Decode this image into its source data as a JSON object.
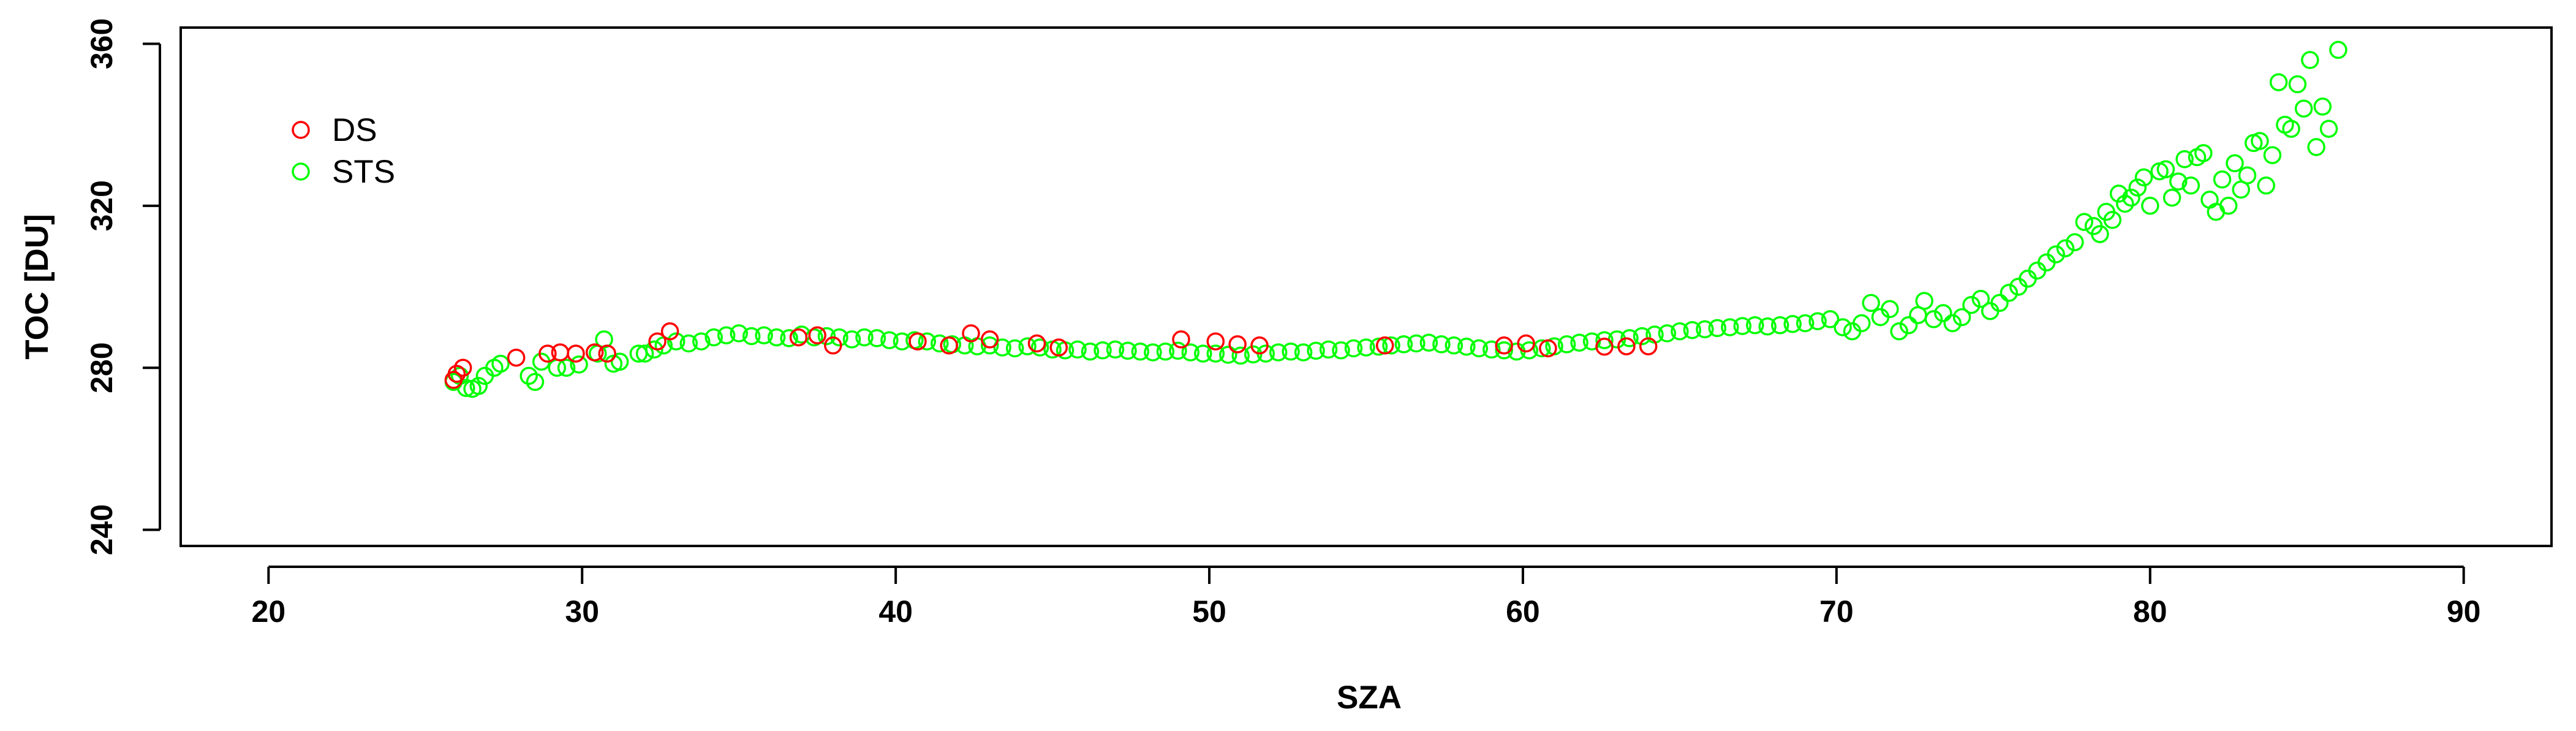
{
  "chart_data": {
    "type": "scatter",
    "xlabel": "SZA",
    "ylabel": "TOC [DU]",
    "xlim": [
      17.2,
      92.8
    ],
    "ylim": [
      236,
      364
    ],
    "x_ticks": [
      20,
      30,
      40,
      50,
      60,
      70,
      80,
      90
    ],
    "y_ticks": [
      240,
      280,
      320,
      360
    ],
    "legend_position": "top-left",
    "series": [
      {
        "name": "DS",
        "color": "#ff0000",
        "marker": "open-circle",
        "points": [
          [
            25.9,
            277
          ],
          [
            26.0,
            278.5
          ],
          [
            26.2,
            280
          ],
          [
            27.9,
            282.5
          ],
          [
            28.9,
            283.5
          ],
          [
            29.3,
            283.8
          ],
          [
            29.8,
            283.5
          ],
          [
            30.4,
            283.8
          ],
          [
            30.8,
            283.5
          ],
          [
            32.4,
            286.5
          ],
          [
            32.8,
            289
          ],
          [
            36.9,
            287.5
          ],
          [
            37.5,
            288
          ],
          [
            38.0,
            285.5
          ],
          [
            40.7,
            286.5
          ],
          [
            41.7,
            285.5
          ],
          [
            42.4,
            288.5
          ],
          [
            43.0,
            287
          ],
          [
            44.5,
            286
          ],
          [
            45.2,
            285
          ],
          [
            49.1,
            287
          ],
          [
            50.2,
            286.5
          ],
          [
            50.9,
            285.8
          ],
          [
            51.6,
            285.5
          ],
          [
            55.6,
            285.5
          ],
          [
            59.4,
            285.5
          ],
          [
            60.1,
            286
          ],
          [
            60.8,
            284.8
          ],
          [
            62.6,
            285.2
          ],
          [
            63.3,
            285.3
          ],
          [
            64.0,
            285.3
          ]
        ]
      },
      {
        "name": "STS",
        "color": "#00ff00",
        "marker": "open-circle",
        "points": [
          [
            25.9,
            276.5
          ],
          [
            26.1,
            278
          ],
          [
            26.3,
            275
          ],
          [
            26.5,
            274.8
          ],
          [
            26.7,
            275.5
          ],
          [
            26.9,
            278
          ],
          [
            27.2,
            280
          ],
          [
            27.4,
            281
          ],
          [
            28.3,
            278
          ],
          [
            28.5,
            276.5
          ],
          [
            28.7,
            281.5
          ],
          [
            29.2,
            280
          ],
          [
            29.5,
            280
          ],
          [
            29.9,
            280.8
          ],
          [
            30.5,
            283.5
          ],
          [
            30.7,
            287
          ],
          [
            31.0,
            281
          ],
          [
            31.2,
            281.5
          ],
          [
            31.8,
            283.5
          ],
          [
            32.0,
            283.5
          ],
          [
            32.3,
            284.5
          ],
          [
            32.6,
            285.5
          ],
          [
            33.0,
            286.5
          ],
          [
            33.4,
            286
          ],
          [
            33.8,
            286.5
          ],
          [
            34.2,
            287.5
          ],
          [
            34.6,
            288
          ],
          [
            35.0,
            288.5
          ],
          [
            35.4,
            287.8
          ],
          [
            35.8,
            288
          ],
          [
            36.2,
            287.5
          ],
          [
            36.6,
            287.3
          ],
          [
            37.0,
            288.2
          ],
          [
            37.4,
            287.5
          ],
          [
            37.8,
            287.8
          ],
          [
            38.2,
            287.5
          ],
          [
            38.6,
            287
          ],
          [
            39.0,
            287.5
          ],
          [
            39.4,
            287.3
          ],
          [
            39.8,
            286.8
          ],
          [
            40.2,
            286.5
          ],
          [
            40.6,
            286.8
          ],
          [
            41.0,
            286.5
          ],
          [
            41.4,
            286
          ],
          [
            41.8,
            285.8
          ],
          [
            42.2,
            285.5
          ],
          [
            42.6,
            285.3
          ],
          [
            43.0,
            285.5
          ],
          [
            43.4,
            285
          ],
          [
            43.8,
            284.8
          ],
          [
            44.2,
            285.3
          ],
          [
            44.6,
            285
          ],
          [
            45.0,
            284.5
          ],
          [
            45.4,
            284.3
          ],
          [
            45.8,
            284.5
          ],
          [
            46.2,
            284
          ],
          [
            46.6,
            284.3
          ],
          [
            47.0,
            284.5
          ],
          [
            47.4,
            284.2
          ],
          [
            47.8,
            284
          ],
          [
            48.2,
            283.8
          ],
          [
            48.6,
            284
          ],
          [
            49.0,
            284.2
          ],
          [
            49.4,
            283.8
          ],
          [
            49.8,
            283.5
          ],
          [
            50.2,
            283.5
          ],
          [
            50.6,
            283.2
          ],
          [
            51.0,
            283
          ],
          [
            51.4,
            283.3
          ],
          [
            51.8,
            283.5
          ],
          [
            52.2,
            283.8
          ],
          [
            52.6,
            284
          ],
          [
            53.0,
            283.8
          ],
          [
            53.4,
            284.2
          ],
          [
            53.8,
            284.5
          ],
          [
            54.2,
            284.3
          ],
          [
            54.6,
            284.8
          ],
          [
            55.0,
            285
          ],
          [
            55.4,
            285.2
          ],
          [
            55.8,
            285.5
          ],
          [
            56.2,
            285.8
          ],
          [
            56.6,
            286
          ],
          [
            57.0,
            286.2
          ],
          [
            57.4,
            285.8
          ],
          [
            57.8,
            285.5
          ],
          [
            58.2,
            285.2
          ],
          [
            58.6,
            284.8
          ],
          [
            59.0,
            284.5
          ],
          [
            59.4,
            284.3
          ],
          [
            59.8,
            284
          ],
          [
            60.2,
            284.3
          ],
          [
            60.6,
            284.8
          ],
          [
            61.0,
            285.3
          ],
          [
            61.4,
            285.8
          ],
          [
            61.8,
            286.2
          ],
          [
            62.2,
            286.5
          ],
          [
            62.6,
            286.8
          ],
          [
            63.0,
            287
          ],
          [
            63.4,
            287.3
          ],
          [
            63.8,
            287.8
          ],
          [
            64.2,
            288.2
          ],
          [
            64.6,
            288.5
          ],
          [
            65.0,
            289
          ],
          [
            65.4,
            289.3
          ],
          [
            65.8,
            289.5
          ],
          [
            66.2,
            289.8
          ],
          [
            66.6,
            290
          ],
          [
            67.0,
            290.3
          ],
          [
            67.4,
            290.5
          ],
          [
            67.8,
            290.2
          ],
          [
            68.2,
            290.5
          ],
          [
            68.6,
            290.8
          ],
          [
            69.0,
            291
          ],
          [
            69.4,
            291.5
          ],
          [
            69.8,
            292
          ],
          [
            70.2,
            290
          ],
          [
            70.5,
            289
          ],
          [
            70.8,
            291
          ],
          [
            71.1,
            296
          ],
          [
            71.4,
            292.5
          ],
          [
            71.7,
            294.5
          ],
          [
            72.0,
            289
          ],
          [
            72.3,
            290.5
          ],
          [
            72.6,
            293
          ],
          [
            72.8,
            296.5
          ],
          [
            73.1,
            292
          ],
          [
            73.4,
            293.5
          ],
          [
            73.7,
            291
          ],
          [
            74.0,
            292.5
          ],
          [
            74.3,
            295.5
          ],
          [
            74.6,
            297
          ],
          [
            74.9,
            294
          ],
          [
            75.2,
            296
          ],
          [
            75.5,
            298.5
          ],
          [
            75.8,
            300
          ],
          [
            76.1,
            302
          ],
          [
            76.4,
            304
          ],
          [
            76.7,
            306
          ],
          [
            77.0,
            308
          ],
          [
            77.3,
            309.5
          ],
          [
            77.6,
            311
          ],
          [
            77.9,
            316
          ],
          [
            78.2,
            315
          ],
          [
            78.4,
            313
          ],
          [
            78.6,
            318.5
          ],
          [
            78.8,
            316.5
          ],
          [
            79.0,
            323
          ],
          [
            79.2,
            320.5
          ],
          [
            79.4,
            322
          ],
          [
            79.6,
            324.5
          ],
          [
            79.8,
            327
          ],
          [
            80.0,
            320
          ],
          [
            80.3,
            328.5
          ],
          [
            80.5,
            329
          ],
          [
            80.7,
            322
          ],
          [
            80.9,
            326
          ],
          [
            81.1,
            331.5
          ],
          [
            81.3,
            325
          ],
          [
            81.5,
            332
          ],
          [
            81.7,
            333
          ],
          [
            81.9,
            321.5
          ],
          [
            82.1,
            318.5
          ],
          [
            82.3,
            326.5
          ],
          [
            82.5,
            320
          ],
          [
            82.7,
            330.5
          ],
          [
            82.9,
            324
          ],
          [
            83.1,
            327.5
          ],
          [
            83.3,
            335.5
          ],
          [
            83.5,
            336
          ],
          [
            83.7,
            325
          ],
          [
            83.9,
            332.5
          ],
          [
            84.1,
            350.5
          ],
          [
            84.3,
            340
          ],
          [
            84.5,
            339
          ],
          [
            84.7,
            350
          ],
          [
            84.9,
            344
          ],
          [
            85.1,
            356
          ],
          [
            85.3,
            334.5
          ],
          [
            85.5,
            344.5
          ],
          [
            85.7,
            339
          ],
          [
            86.0,
            358.5
          ]
        ]
      }
    ]
  }
}
